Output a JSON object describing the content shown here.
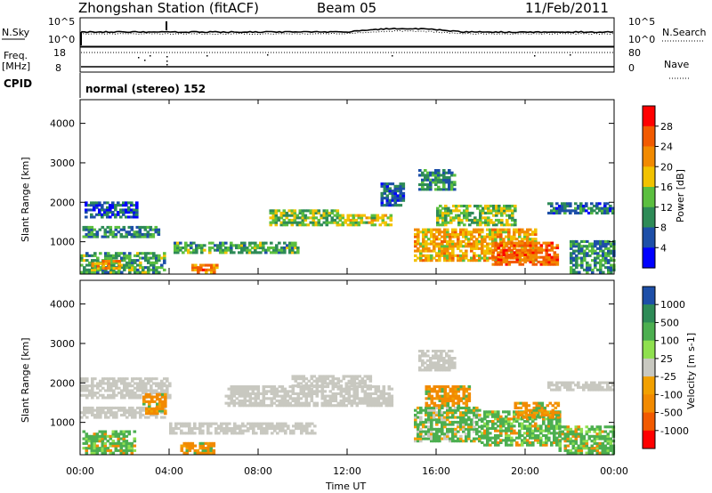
{
  "header": {
    "station": "Zhongshan Station (fitACF)",
    "beam": "Beam 05",
    "date": "11/Feb/2011"
  },
  "top_panels": {
    "nsky_label": "N.Sky",
    "nsky_ticks": [
      "10^5",
      "10^0"
    ],
    "nsearch_label": "N.Search",
    "nsearch_ticks": [
      "10^5",
      "10^0"
    ],
    "freq_label": "Freq.",
    "freq_unit": "[MHz]",
    "freq_ticks": [
      "18",
      "8"
    ],
    "nave_label": "Nave",
    "nave_ticks": [
      "80",
      "0"
    ],
    "cpid_label": "CPID",
    "cpid_text": "normal (stereo) 152"
  },
  "colors": {
    "power_bins": [
      "#0000ff",
      "#1d4fa8",
      "#2e8b57",
      "#5bbf3f",
      "#f2c200",
      "#f28a00",
      "#f25a00",
      "#ff0000"
    ],
    "velocity_bins": [
      "#1d4fa8",
      "#2e8b57",
      "#4caf50",
      "#8fe04f",
      "#c8c8c0",
      "#f2a000",
      "#f28a00",
      "#f25a00",
      "#ff0000"
    ],
    "ground_scatter": "#c8c8c0"
  },
  "chart_data": [
    {
      "type": "heatmap",
      "title": "",
      "xlabel": "Time UT",
      "ylabel": "Slant Range [km]",
      "x_ticks": [
        "00:00",
        "04:00",
        "08:00",
        "12:00",
        "16:00",
        "20:00",
        "00:00"
      ],
      "y_ticks": [
        "1000",
        "2000",
        "3000",
        "4000"
      ],
      "xlim_hours": [
        0,
        24
      ],
      "ylim_km": [
        180,
        4600
      ],
      "colorbar": {
        "label": "Power [dB]",
        "ticks": [
          "4",
          "8",
          "12",
          "16",
          "20",
          "24",
          "28"
        ],
        "range": [
          0,
          32
        ]
      },
      "regions": [
        {
          "t0": 0.0,
          "t1": 3.8,
          "r0": 200,
          "r1": 700,
          "value": 12
        },
        {
          "t0": 0.1,
          "t1": 3.5,
          "r0": 1100,
          "r1": 1400,
          "value": 10
        },
        {
          "t0": 0.2,
          "t1": 2.6,
          "r0": 1600,
          "r1": 2000,
          "value": 6
        },
        {
          "t0": 0.5,
          "t1": 1.8,
          "r0": 300,
          "r1": 500,
          "value": 22
        },
        {
          "t0": 4.2,
          "t1": 9.8,
          "r0": 700,
          "r1": 1000,
          "value": 12
        },
        {
          "t0": 5.0,
          "t1": 6.2,
          "r0": 200,
          "r1": 400,
          "value": 24
        },
        {
          "t0": 8.5,
          "t1": 11.5,
          "r0": 1400,
          "r1": 1800,
          "value": 14
        },
        {
          "t0": 11.5,
          "t1": 14.0,
          "r0": 1400,
          "r1": 1700,
          "value": 16
        },
        {
          "t0": 13.5,
          "t1": 14.5,
          "r0": 1900,
          "r1": 2500,
          "value": 7
        },
        {
          "t0": 15.2,
          "t1": 16.8,
          "r0": 2300,
          "r1": 2800,
          "value": 9
        },
        {
          "t0": 15.0,
          "t1": 20.5,
          "r0": 500,
          "r1": 1300,
          "value": 20
        },
        {
          "t0": 16.0,
          "t1": 19.5,
          "r0": 1400,
          "r1": 1900,
          "value": 14
        },
        {
          "t0": 18.5,
          "t1": 21.5,
          "r0": 400,
          "r1": 1000,
          "value": 25
        },
        {
          "t0": 21.0,
          "t1": 24.0,
          "r0": 1700,
          "r1": 2000,
          "value": 8
        },
        {
          "t0": 22.0,
          "t1": 24.0,
          "r0": 200,
          "r1": 1000,
          "value": 10
        }
      ]
    },
    {
      "type": "heatmap",
      "title": "",
      "xlabel": "Time UT",
      "ylabel": "Slant Range [km]",
      "x_ticks": [
        "00:00",
        "04:00",
        "08:00",
        "12:00",
        "16:00",
        "20:00",
        "00:00"
      ],
      "y_ticks": [
        "1000",
        "2000",
        "3000",
        "4000"
      ],
      "xlim_hours": [
        0,
        24
      ],
      "ylim_km": [
        180,
        4600
      ],
      "colorbar": {
        "label": "Velocity [m s-1]",
        "ticks": [
          "1000",
          "500",
          "100",
          "25",
          "-25",
          "-100",
          "-500",
          "-1000"
        ]
      },
      "regions": [
        {
          "t0": 0.0,
          "t1": 4.0,
          "r0": 1600,
          "r1": 2100,
          "value": "ground"
        },
        {
          "t0": 0.0,
          "t1": 3.8,
          "r0": 1100,
          "r1": 1400,
          "value": "ground"
        },
        {
          "t0": 0.1,
          "t1": 2.5,
          "r0": 200,
          "r1": 800,
          "value": 300
        },
        {
          "t0": 2.8,
          "t1": 3.8,
          "r0": 1200,
          "r1": 1700,
          "value": -300
        },
        {
          "t0": 4.0,
          "t1": 10.5,
          "r0": 700,
          "r1": 1000,
          "value": "ground"
        },
        {
          "t0": 4.5,
          "t1": 6.0,
          "r0": 200,
          "r1": 500,
          "value": -300
        },
        {
          "t0": 6.5,
          "t1": 14.0,
          "r0": 1400,
          "r1": 1900,
          "value": "ground"
        },
        {
          "t0": 9.5,
          "t1": 13.0,
          "r0": 1900,
          "r1": 2200,
          "value": "ground"
        },
        {
          "t0": 15.2,
          "t1": 16.8,
          "r0": 2300,
          "r1": 2800,
          "value": "ground"
        },
        {
          "t0": 15.0,
          "t1": 18.0,
          "r0": 500,
          "r1": 1400,
          "value": 100
        },
        {
          "t0": 15.5,
          "t1": 17.5,
          "r0": 1400,
          "r1": 1900,
          "value": -300
        },
        {
          "t0": 18.0,
          "t1": 21.5,
          "r0": 400,
          "r1": 1300,
          "value": 300
        },
        {
          "t0": 19.5,
          "t1": 21.5,
          "r0": 1100,
          "r1": 1500,
          "value": -300
        },
        {
          "t0": 21.0,
          "t1": 24.0,
          "r0": 1800,
          "r1": 2000,
          "value": "ground"
        },
        {
          "t0": 21.5,
          "t1": 24.0,
          "r0": 200,
          "r1": 900,
          "value": 300
        }
      ]
    }
  ]
}
